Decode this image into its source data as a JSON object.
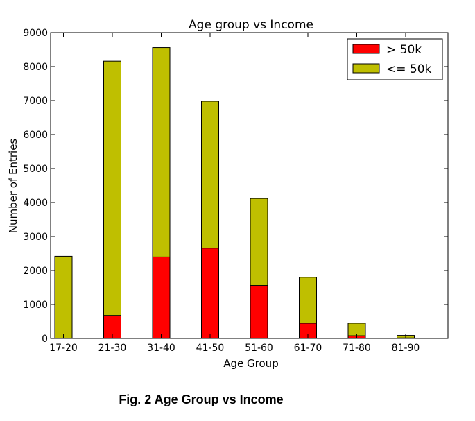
{
  "chart_data": {
    "type": "bar",
    "stacked": true,
    "title": "Age group vs Income",
    "xlabel": "Age Group",
    "ylabel": "Number of Entries",
    "categories": [
      "17-20",
      "21-30",
      "31-40",
      "41-50",
      "51-60",
      "61-70",
      "71-80",
      "81-90"
    ],
    "ylim": [
      0,
      9000
    ],
    "yticks": [
      "0",
      "1000",
      "2000",
      "3000",
      "4000",
      "5000",
      "6000",
      "7000",
      "8000",
      "9000"
    ],
    "grid": false,
    "legend_position": "top-right",
    "series": [
      {
        "name": "> 50k",
        "color": "#ff0000",
        "values": [
          0,
          680,
          2400,
          2660,
          1560,
          450,
          80,
          15
        ]
      },
      {
        "name": "<= 50k",
        "color": "#bfbf00",
        "values": [
          2420,
          7480,
          6160,
          4320,
          2560,
          1350,
          370,
          75
        ]
      }
    ]
  },
  "caption": "Fig. 2 Age Group vs Income"
}
